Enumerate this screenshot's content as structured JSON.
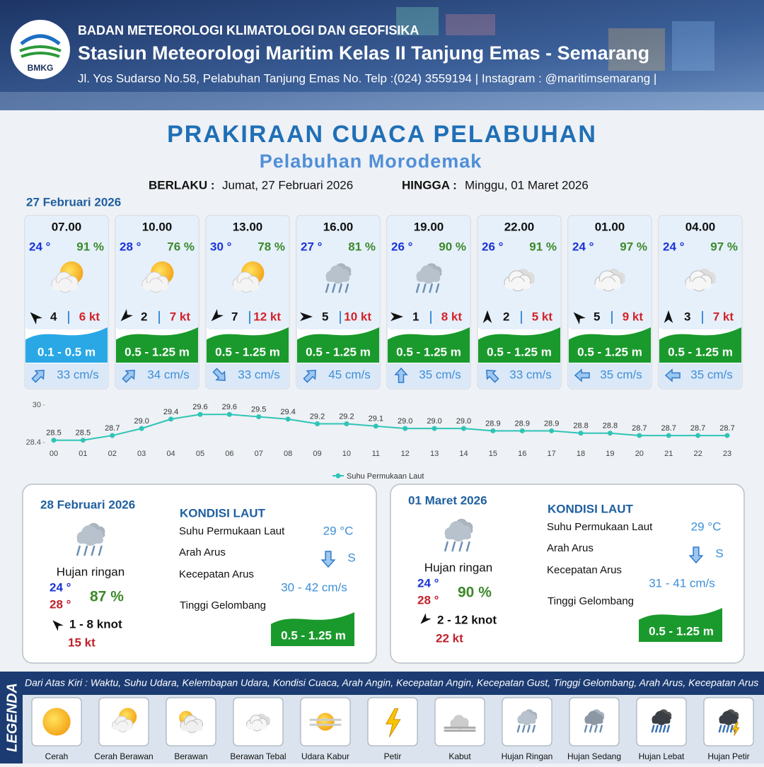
{
  "header": {
    "logo": "BMKG",
    "organization": "BADAN METEOROLOGI KLIMATOLOGI DAN GEOFISIKA",
    "station": "Stasiun Meteorologi Maritim Kelas II Tanjung Emas - Semarang",
    "address": "Jl. Yos Sudarso No.58, Pelabuhan Tanjung Emas No. Telp :(024) 3559194 | Instagram : @maritimsemarang |"
  },
  "title": "PRAKIRAAN CUACA PELABUHAN",
  "subtitle": "Pelabuhan Morodemak",
  "validity": {
    "from_label": "BERLAKU :",
    "from": "Jumat, 27 Februari 2026",
    "to_label": "HINGGA :",
    "to": "Minggu, 01 Maret 2026"
  },
  "day1_date": "27 Februari 2026",
  "hourly": [
    {
      "time": "07.00",
      "temp": "24 °",
      "rh": "91 %",
      "condition": "Cerah Berawan",
      "wind_to": "NW",
      "wind": "4",
      "gust": "6 kt",
      "wave": "0.1 - 0.5 m",
      "wave_color": "#2aa8e6",
      "current_to": "NE",
      "current": "33 cm/s"
    },
    {
      "time": "10.00",
      "temp": "28 °",
      "rh": "76 %",
      "condition": "Cerah Berawan",
      "wind_to": "SW",
      "wind": "2",
      "gust": "7 kt",
      "wave": "0.5 - 1.25 m",
      "wave_color": "#1a9a2c",
      "current_to": "NE",
      "current": "34 cm/s"
    },
    {
      "time": "13.00",
      "temp": "30 °",
      "rh": "78 %",
      "condition": "Cerah Berawan",
      "wind_to": "SW",
      "wind": "7",
      "gust": "12 kt",
      "wave": "0.5 - 1.25 m",
      "wave_color": "#1a9a2c",
      "current_to": "SE",
      "current": "33 cm/s"
    },
    {
      "time": "16.00",
      "temp": "27 °",
      "rh": "81 %",
      "condition": "Hujan Ringan",
      "wind_to": "E",
      "wind": "5",
      "gust": "10 kt",
      "wave": "0.5 - 1.25 m",
      "wave_color": "#1a9a2c",
      "current_to": "NE",
      "current": "45 cm/s"
    },
    {
      "time": "19.00",
      "temp": "26 °",
      "rh": "90 %",
      "condition": "Hujan Ringan",
      "wind_to": "E",
      "wind": "1",
      "gust": "8 kt",
      "wave": "0.5 - 1.25 m",
      "wave_color": "#1a9a2c",
      "current_to": "N",
      "current": "35 cm/s"
    },
    {
      "time": "22.00",
      "temp": "26 °",
      "rh": "91 %",
      "condition": "Berawan Tebal",
      "wind_to": "N",
      "wind": "2",
      "gust": "5 kt",
      "wave": "0.5 - 1.25 m",
      "wave_color": "#1a9a2c",
      "current_to": "NW",
      "current": "33 cm/s"
    },
    {
      "time": "01.00",
      "temp": "24 °",
      "rh": "97 %",
      "condition": "Berawan Tebal",
      "wind_to": "NW",
      "wind": "5",
      "gust": "9 kt",
      "wave": "0.5 - 1.25 m",
      "wave_color": "#1a9a2c",
      "current_to": "W",
      "current": "35 cm/s"
    },
    {
      "time": "04.00",
      "temp": "24 °",
      "rh": "97 %",
      "condition": "Berawan Tebal",
      "wind_to": "N",
      "wind": "3",
      "gust": "7 kt",
      "wave": "0.5 - 1.25 m",
      "wave_color": "#1a9a2c",
      "current_to": "W",
      "current": "35 cm/s"
    }
  ],
  "chart_data": {
    "type": "line",
    "categories": [
      "00",
      "01",
      "02",
      "03",
      "04",
      "05",
      "06",
      "07",
      "08",
      "09",
      "10",
      "11",
      "12",
      "13",
      "14",
      "15",
      "16",
      "17",
      "18",
      "19",
      "20",
      "21",
      "22",
      "23"
    ],
    "series": [
      {
        "name": "Suhu Permukaan Laut",
        "color": "#2ec4b6",
        "values": [
          28.5,
          28.5,
          28.7,
          29.0,
          29.4,
          29.6,
          29.6,
          29.5,
          29.4,
          29.2,
          29.2,
          29.1,
          29.0,
          29.0,
          29.0,
          28.9,
          28.9,
          28.9,
          28.8,
          28.8,
          28.7,
          28.7,
          28.7,
          28.7
        ],
        "value_labels": [
          "28.5",
          "28.5",
          "28.7",
          "29.0",
          "29.4",
          "29.6",
          "29.6",
          "29.5",
          "29.4",
          "29.2",
          "29.2",
          "29.1",
          "29.0",
          "29.0",
          "29.0",
          "28.9",
          "28.9",
          "28.9",
          "28.8",
          "28.8",
          "28.7",
          "28.7",
          "28.7",
          "28.7"
        ]
      }
    ],
    "ylim": [
      28.4,
      30
    ],
    "yticks": [
      28.4,
      30
    ],
    "legend": "bottom"
  },
  "days": [
    {
      "date": "28 Februari 2026",
      "condition": "Hujan ringan",
      "tmin": "24 °",
      "tmax": "28 °",
      "rh": "87 %",
      "wind_to": "NW",
      "wind": "1 - 8 knot",
      "gust": "15 kt",
      "sea_title": "KONDISI LAUT",
      "sst_label": "Suhu Permukaan Laut",
      "sst": "29 °C",
      "current_dir_label": "Arah Arus",
      "current_dir": "S",
      "current_speed_label": "Kecepatan Arus",
      "current_speed": "30 - 42 cm/s",
      "wave_label": "Tinggi Gelombang",
      "wave": "0.5 - 1.25 m"
    },
    {
      "date": "01 Maret 2026",
      "condition": "Hujan ringan",
      "tmin": "24 °",
      "tmax": "28 °",
      "rh": "90 %",
      "wind_to": "SW",
      "wind": "2 - 12 knot",
      "gust": "22 kt",
      "sea_title": "KONDISI LAUT",
      "sst_label": "Suhu Permukaan Laut",
      "sst": "29 °C",
      "current_dir_label": "Arah Arus",
      "current_dir": "S",
      "current_speed_label": "Kecepatan Arus",
      "current_speed": "31 - 41 cm/s",
      "wave_label": "Tinggi Gelombang",
      "wave": "0.5 - 1.25 m"
    }
  ],
  "legend": {
    "title": "LEGENDA",
    "description": "Dari Atas Kiri : Waktu, Suhu Udara, Kelembapan Udara, Kondisi Cuaca, Arah Angin, Kecepatan Angin, Kecepatan Gust, Tinggi Gelombang, Arah Arus, Kecepatan Arus",
    "items": [
      "Cerah",
      "Cerah Berawan",
      "Berawan",
      "Berawan Tebal",
      "Udara Kabur",
      "Petir",
      "Kabut",
      "Hujan Ringan",
      "Hujan Sedang",
      "Hujan Lebat",
      "Hujan Petir"
    ]
  }
}
